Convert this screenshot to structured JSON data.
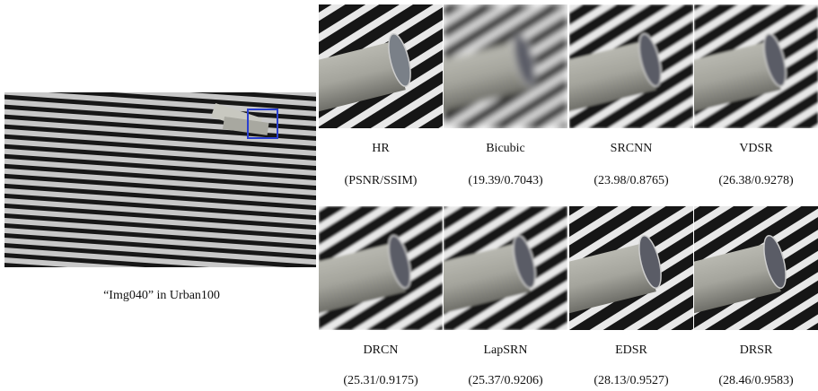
{
  "caption": "“Img040” in Urban100",
  "panels": [
    {
      "method": "HR",
      "score": "(PSNR/SSIM)"
    },
    {
      "method": "Bicubic",
      "score": "(19.39/0.7043)"
    },
    {
      "method": "SRCNN",
      "score": "(23.98/0.8765)"
    },
    {
      "method": "VDSR",
      "score": "(26.38/0.9278)"
    },
    {
      "method": "DRCN",
      "score": "(25.31/0.9175)"
    },
    {
      "method": "LapSRN",
      "score": "(25.37/0.9206)"
    },
    {
      "method": "EDSR",
      "score": "(28.13/0.9527)"
    },
    {
      "method": "DRSR",
      "score": "(28.46/0.9583)"
    }
  ]
}
